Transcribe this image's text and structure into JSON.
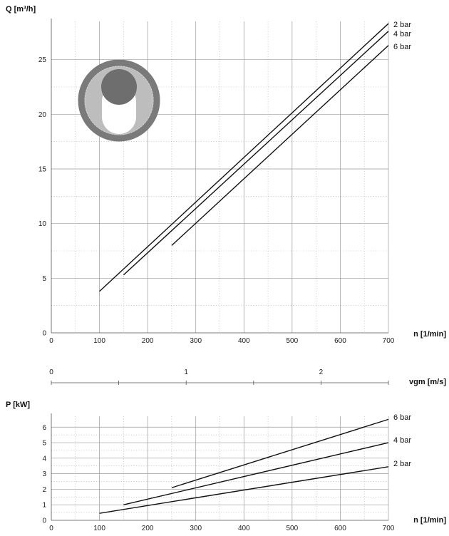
{
  "chart_data": [
    {
      "type": "line",
      "ylabel": "Q [m³/h]",
      "xlabel": "n [1/min]",
      "xlim": [
        0,
        700
      ],
      "ylim": [
        0,
        28.5
      ],
      "xticks": [
        0,
        100,
        200,
        300,
        400,
        500,
        600,
        700
      ],
      "yticks": [
        0,
        5,
        10,
        15,
        20,
        25
      ],
      "grid": true,
      "series": [
        {
          "name": "2 bar",
          "x": [
            100,
            700
          ],
          "y": [
            3.8,
            28.3
          ]
        },
        {
          "name": "4 bar",
          "x": [
            150,
            700
          ],
          "y": [
            5.3,
            27.6
          ]
        },
        {
          "name": "6 bar",
          "x": [
            250,
            700
          ],
          "y": [
            8.0,
            26.3
          ]
        }
      ]
    },
    {
      "type": "axis",
      "xlabel": "vgm [m/s]",
      "xlim": [
        0,
        2.5
      ],
      "xticks": [
        0,
        1,
        2
      ]
    },
    {
      "type": "line",
      "ylabel": "P [kW]",
      "xlabel": "n [1/min]",
      "xlim": [
        0,
        700
      ],
      "ylim": [
        0,
        6.7
      ],
      "xticks": [
        0,
        100,
        200,
        300,
        400,
        500,
        600,
        700
      ],
      "yticks": [
        0,
        1,
        2,
        3,
        4,
        5,
        6
      ],
      "grid": true,
      "series": [
        {
          "name": "6 bar",
          "x": [
            250,
            700
          ],
          "y": [
            2.1,
            6.5
          ]
        },
        {
          "name": "4 bar",
          "x": [
            150,
            700
          ],
          "y": [
            1.0,
            5.0
          ]
        },
        {
          "name": "2 bar",
          "x": [
            100,
            700
          ],
          "y": [
            0.45,
            3.45
          ]
        }
      ]
    }
  ],
  "colors": {
    "line": "#111111",
    "grid": "#9a9a9a",
    "ring": "#7a7a7a",
    "fill": "#c4c4c4",
    "rotor": "#6e6e6e"
  },
  "icon": "pump-cross-section-icon"
}
